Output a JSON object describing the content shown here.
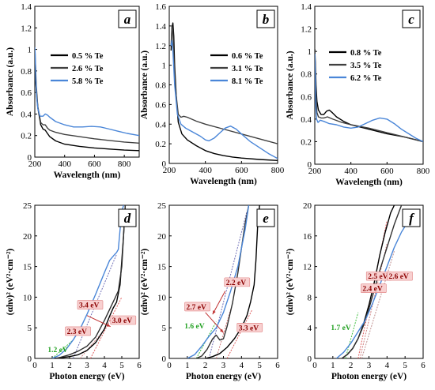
{
  "chart_data": [
    {
      "id": "a",
      "type": "line",
      "panel_label": "a",
      "xlabel": "Wavelength (nm)",
      "ylabel": "Absorbance (a.u.)",
      "xlim": [
        200,
        900
      ],
      "ylim": [
        0,
        1.4
      ],
      "xticks": [
        200,
        400,
        600,
        800
      ],
      "yticks": [
        0,
        0.2,
        0.4,
        0.6,
        0.8,
        1.0,
        1.2,
        1.4
      ],
      "ytick_labels": [
        "0",
        "0.2",
        "0.4",
        "0.6",
        "0.8",
        "1",
        "1.2",
        "1.4"
      ],
      "legend_position": "top-left",
      "series": [
        {
          "name": "0.5 % Te",
          "color": "#000000",
          "x": [
            200,
            205,
            210,
            220,
            240,
            255,
            270,
            285,
            300,
            340,
            400,
            500,
            600,
            700,
            800,
            900
          ],
          "y": [
            0.78,
            0.72,
            0.62,
            0.46,
            0.3,
            0.26,
            0.25,
            0.22,
            0.19,
            0.15,
            0.12,
            0.1,
            0.085,
            0.075,
            0.065,
            0.06
          ]
        },
        {
          "name": "2.6 % Te",
          "color": "#404040",
          "x": [
            200,
            205,
            210,
            220,
            240,
            255,
            270,
            285,
            300,
            340,
            400,
            500,
            600,
            700,
            800,
            900
          ],
          "y": [
            0.98,
            0.85,
            0.66,
            0.47,
            0.32,
            0.3,
            0.3,
            0.27,
            0.25,
            0.23,
            0.21,
            0.19,
            0.17,
            0.155,
            0.14,
            0.13
          ]
        },
        {
          "name": "5.8 % Te",
          "color": "#4a86d8",
          "x": [
            200,
            203,
            207,
            212,
            220,
            235,
            255,
            270,
            285,
            300,
            340,
            400,
            460,
            520,
            580,
            640,
            700,
            760,
            820,
            900
          ],
          "y": [
            1.02,
            0.95,
            0.72,
            0.56,
            0.45,
            0.38,
            0.38,
            0.4,
            0.39,
            0.37,
            0.33,
            0.3,
            0.28,
            0.28,
            0.285,
            0.28,
            0.26,
            0.24,
            0.22,
            0.2
          ]
        }
      ]
    },
    {
      "id": "b",
      "type": "line",
      "panel_label": "b",
      "xlabel": "Wavelength (nm)",
      "ylabel": "Absorbance (a.u.)",
      "xlim": [
        200,
        800
      ],
      "ylim": [
        0,
        1.6
      ],
      "xticks": [
        200,
        400,
        600,
        800
      ],
      "yticks": [
        0,
        0.2,
        0.4,
        0.6,
        0.8,
        1.0,
        1.2,
        1.4,
        1.6
      ],
      "ytick_labels": [
        "0",
        "0.2",
        "0.4",
        "0.6",
        "0.8",
        "1",
        "1.2",
        "1.4",
        "1.6"
      ],
      "legend_position": "top-right",
      "series": [
        {
          "name": "0.6 % Te",
          "color": "#000000",
          "x": [
            210,
            215,
            220,
            225,
            230,
            240,
            250,
            270,
            300,
            350,
            400,
            450,
            500,
            550,
            600,
            700,
            800
          ],
          "y": [
            1.15,
            1.38,
            1.43,
            1.3,
            1.0,
            0.65,
            0.42,
            0.3,
            0.24,
            0.18,
            0.13,
            0.1,
            0.08,
            0.065,
            0.055,
            0.04,
            0.03
          ]
        },
        {
          "name": "3.1 % Te",
          "color": "#404040",
          "x": [
            210,
            215,
            220,
            225,
            235,
            250,
            265,
            280,
            300,
            350,
            400,
            500,
            600,
            700,
            800
          ],
          "y": [
            1.2,
            1.4,
            1.35,
            1.1,
            0.75,
            0.5,
            0.47,
            0.48,
            0.47,
            0.43,
            0.4,
            0.35,
            0.3,
            0.25,
            0.2
          ]
        },
        {
          "name": "8.1 % Te",
          "color": "#4a86d8",
          "x": [
            210,
            215,
            220,
            230,
            245,
            265,
            290,
            330,
            370,
            400,
            420,
            450,
            480,
            510,
            540,
            570,
            600,
            650,
            700,
            750,
            800
          ],
          "y": [
            1.2,
            1.25,
            1.15,
            0.8,
            0.5,
            0.4,
            0.36,
            0.32,
            0.28,
            0.24,
            0.23,
            0.26,
            0.31,
            0.36,
            0.38,
            0.35,
            0.3,
            0.22,
            0.16,
            0.1,
            0.05
          ]
        }
      ]
    },
    {
      "id": "c",
      "type": "line",
      "panel_label": "c",
      "xlabel": "Wavelength (nm)",
      "ylabel": "Absorbance (a.u.)",
      "xlim": [
        200,
        800
      ],
      "ylim": [
        0,
        1.4
      ],
      "xticks": [
        200,
        400,
        600,
        800
      ],
      "yticks": [
        0,
        0.2,
        0.4,
        0.6,
        0.8,
        1.0,
        1.2,
        1.4
      ],
      "ytick_labels": [
        "0",
        "0.2",
        "0.4",
        "0.6",
        "0.8",
        "1",
        "1.2",
        "1.4"
      ],
      "legend_position": "top-right",
      "series": [
        {
          "name": "0.8 % Te",
          "color": "#000000",
          "x": [
            200,
            203,
            207,
            212,
            220,
            235,
            250,
            265,
            280,
            295,
            320,
            360,
            400,
            500,
            600,
            700,
            800
          ],
          "y": [
            1.02,
            0.9,
            0.7,
            0.56,
            0.48,
            0.44,
            0.44,
            0.47,
            0.48,
            0.46,
            0.42,
            0.38,
            0.35,
            0.31,
            0.27,
            0.24,
            0.2
          ]
        },
        {
          "name": "3.5 % Te",
          "color": "#404040",
          "x": [
            200,
            203,
            207,
            212,
            220,
            235,
            250,
            270,
            300,
            350,
            400,
            500,
            600,
            700,
            800
          ],
          "y": [
            1.0,
            0.85,
            0.6,
            0.46,
            0.42,
            0.41,
            0.41,
            0.42,
            0.4,
            0.37,
            0.35,
            0.32,
            0.28,
            0.24,
            0.2
          ]
        },
        {
          "name": "6.2 % Te",
          "color": "#4a86d8",
          "x": [
            200,
            203,
            206,
            210,
            218,
            230,
            250,
            280,
            320,
            360,
            400,
            440,
            480,
            520,
            560,
            600,
            640,
            680,
            720,
            760,
            800
          ],
          "y": [
            0.98,
            0.75,
            0.5,
            0.4,
            0.37,
            0.39,
            0.38,
            0.36,
            0.35,
            0.33,
            0.32,
            0.33,
            0.36,
            0.39,
            0.41,
            0.4,
            0.36,
            0.31,
            0.27,
            0.23,
            0.2
          ]
        }
      ]
    },
    {
      "id": "d",
      "type": "line",
      "panel_label": "d",
      "xlabel": "Photon energy (eV)",
      "ylabel": "(αhν)² (eV²·cm⁻²)",
      "xlim": [
        0,
        6
      ],
      "ylim": [
        0,
        25
      ],
      "xticks": [
        0,
        1,
        2,
        3,
        4,
        5,
        6
      ],
      "yticks": [
        0,
        5,
        10,
        15,
        20,
        25
      ],
      "series": [
        {
          "name": "black",
          "color": "#000000",
          "x": [
            1.0,
            1.5,
            2.0,
            2.5,
            3.0,
            3.5,
            4.0,
            4.3,
            4.5,
            4.7,
            4.9,
            5.1,
            5.2
          ],
          "y": [
            0,
            0.1,
            0.3,
            0.6,
            1.3,
            2.6,
            4.8,
            6.9,
            8.2,
            9.2,
            12,
            20,
            25
          ]
        },
        {
          "name": "dark",
          "color": "#303030",
          "x": [
            1.2,
            1.5,
            2.0,
            2.5,
            3.0,
            3.5,
            4.0,
            4.3,
            4.6,
            4.8,
            5.0,
            5.2
          ],
          "y": [
            0,
            0.2,
            0.6,
            1.2,
            2.0,
            3.5,
            6.2,
            8.0,
            9.8,
            11,
            15,
            25
          ]
        },
        {
          "name": "blue",
          "color": "#4a86d8",
          "x": [
            1.0,
            1.4,
            1.8,
            2.2,
            2.6,
            3.0,
            3.5,
            4.0,
            4.3,
            4.6,
            4.7,
            4.8,
            4.9,
            5.0,
            5.1
          ],
          "y": [
            0,
            0.5,
            1.5,
            3.0,
            4.8,
            7.2,
            10.5,
            14,
            16,
            17,
            17.3,
            17.8,
            21,
            24,
            25
          ]
        }
      ],
      "fit_lines": [
        {
          "color": "#7070b8",
          "x": [
            2.2,
            4.7
          ],
          "y": [
            0,
            17
          ]
        },
        {
          "color": "#e06060",
          "x": [
            3.2,
            5.0
          ],
          "y": [
            0,
            10
          ]
        },
        {
          "color": "#d08080",
          "x": [
            2.6,
            3.8
          ],
          "y": [
            0,
            4
          ]
        },
        {
          "color": "#40c040",
          "x": [
            1.0,
            2.2
          ],
          "y": [
            0,
            3
          ]
        }
      ],
      "annotations": [
        {
          "text": "3.4 eV",
          "x": 2.5,
          "y": 8.3,
          "color": "#8b0000",
          "bg": "#f8d0d0",
          "border": "#e08080"
        },
        {
          "text": "3.0 eV",
          "x": 4.4,
          "y": 5.8,
          "color": "#8b0000",
          "bg": "#f8d0d0",
          "border": "#e08080"
        },
        {
          "text": "2.3 eV",
          "x": 1.8,
          "y": 4.0,
          "color": "#8b0000",
          "bg": "#f8d0d0",
          "border": "#e08080"
        },
        {
          "text": "1.2 eV",
          "x": 0.7,
          "y": 1.0,
          "color": "#20a020",
          "bg": "none",
          "border": "none"
        }
      ],
      "arrows": [
        {
          "from": [
            3.0,
            7.0
          ],
          "to": [
            4.35,
            5.2
          ]
        }
      ]
    },
    {
      "id": "e",
      "type": "line",
      "panel_label": "e",
      "xlabel": "Photon energy (eV)",
      "ylabel": "(αhν)² (eV²·cm⁻²)",
      "xlim": [
        0,
        6
      ],
      "ylim": [
        0,
        25
      ],
      "xticks": [
        0,
        1,
        2,
        3,
        4,
        5,
        6
      ],
      "yticks": [
        0,
        5,
        10,
        15,
        20,
        25
      ],
      "series": [
        {
          "name": "black",
          "color": "#000000",
          "x": [
            2.0,
            2.4,
            2.8,
            3.2,
            3.6,
            4.0,
            4.3,
            4.5,
            4.7,
            4.8,
            4.9,
            5.0
          ],
          "y": [
            0,
            0.3,
            0.8,
            1.8,
            3.2,
            5.0,
            7.0,
            9.2,
            12,
            16,
            22,
            25
          ]
        },
        {
          "name": "dark",
          "color": "#303030",
          "x": [
            1.5,
            1.8,
            2.1,
            2.4,
            2.6,
            2.8,
            3.0,
            3.2,
            3.5,
            3.8,
            4.0,
            4.2,
            4.4
          ],
          "y": [
            0,
            0.4,
            1.5,
            3.2,
            3.8,
            3.0,
            3.2,
            5.2,
            9,
            14,
            18,
            22,
            25
          ]
        },
        {
          "name": "blue",
          "color": "#4a86d8",
          "x": [
            1.0,
            1.4,
            1.8,
            2.2,
            2.6,
            3.0,
            3.4,
            3.8,
            4.0,
            4.2,
            4.3,
            4.4
          ],
          "y": [
            0,
            0.6,
            2.0,
            3.6,
            5.0,
            7.5,
            11,
            15,
            18,
            21,
            23,
            25
          ]
        }
      ],
      "fit_lines": [
        {
          "color": "#7070b8",
          "x": [
            2.2,
            4.3
          ],
          "y": [
            0,
            24
          ]
        },
        {
          "color": "#e06060",
          "x": [
            3.2,
            4.6
          ],
          "y": [
            0,
            8
          ]
        },
        {
          "color": "#d08080",
          "x": [
            2.6,
            3.4
          ],
          "y": [
            0,
            8
          ]
        },
        {
          "color": "#40c040",
          "x": [
            1.5,
            2.6
          ],
          "y": [
            0,
            6
          ]
        }
      ],
      "annotations": [
        {
          "text": "2.2 eV",
          "x": 3.1,
          "y": 12.0,
          "color": "#8b0000",
          "bg": "#f8d0d0",
          "border": "#e08080"
        },
        {
          "text": "2.7 eV",
          "x": 0.9,
          "y": 8.0,
          "color": "#8b0000",
          "bg": "#f8d0d0",
          "border": "#e08080"
        },
        {
          "text": "3.3 eV",
          "x": 3.8,
          "y": 4.6,
          "color": "#8b0000",
          "bg": "#f8d0d0",
          "border": "#e08080"
        },
        {
          "text": "1.6 eV",
          "x": 0.8,
          "y": 4.9,
          "color": "#20a020",
          "bg": "none",
          "border": "none"
        }
      ],
      "arrows": [
        {
          "from": [
            3.1,
            11.0
          ],
          "to": [
            2.4,
            7.2
          ]
        },
        {
          "from": [
            2.0,
            7.5
          ],
          "to": [
            3.0,
            4.2
          ]
        }
      ]
    },
    {
      "id": "f",
      "type": "line",
      "panel_label": "f",
      "xlabel": "Photon energy (eV)",
      "ylabel": "(αhν)² (eV²·cm⁻²)",
      "xlim": [
        0,
        6
      ],
      "ylim": [
        0,
        20
      ],
      "xticks": [
        0,
        1,
        2,
        3,
        4,
        5,
        6
      ],
      "yticks": [
        0,
        4,
        8,
        12,
        16,
        20
      ],
      "series": [
        {
          "name": "black",
          "color": "#000000",
          "x": [
            1.5,
            1.8,
            2.1,
            2.4,
            2.7,
            3.0,
            3.3,
            3.6,
            3.9,
            4.2,
            4.4
          ],
          "y": [
            0,
            0.5,
            1.3,
            2.6,
            4.5,
            7,
            10,
            13.5,
            16.5,
            19,
            20
          ]
        },
        {
          "name": "dark",
          "color": "#303030",
          "x": [
            1.5,
            1.8,
            2.1,
            2.4,
            2.7,
            3.0,
            3.3,
            3.6,
            4.0,
            4.4,
            4.8
          ],
          "y": [
            0,
            0.5,
            1.3,
            2.6,
            4.3,
            6.5,
            9,
            11.5,
            14.5,
            17.5,
            20
          ]
        },
        {
          "name": "blue",
          "color": "#4a86d8",
          "x": [
            1.2,
            1.6,
            2.0,
            2.4,
            2.8,
            3.2,
            3.6,
            4.0,
            4.4,
            4.8,
            5.2
          ],
          "y": [
            0,
            0.8,
            2.0,
            3.5,
            5.0,
            7.2,
            9.6,
            12,
            14.5,
            16.5,
            18
          ]
        }
      ],
      "fit_lines": [
        {
          "color": "#e06060",
          "x": [
            2.4,
            4.0
          ],
          "y": [
            0,
            18
          ]
        },
        {
          "color": "#d08080",
          "x": [
            2.5,
            4.0
          ],
          "y": [
            0,
            15
          ]
        },
        {
          "color": "#c09090",
          "x": [
            2.6,
            4.4
          ],
          "y": [
            0,
            14
          ]
        },
        {
          "color": "#40c040",
          "x": [
            1.7,
            2.4
          ],
          "y": [
            0,
            6
          ]
        }
      ],
      "annotations": [
        {
          "text": "2.5 eV",
          "x": 2.9,
          "y": 10.4,
          "color": "#8b0000",
          "bg": "#f8d0d0",
          "border": "#e08080"
        },
        {
          "text": "2.6 eV",
          "x": 4.05,
          "y": 10.4,
          "color": "#8b0000",
          "bg": "#f8d0d0",
          "border": "#e08080"
        },
        {
          "text": "2.4 eV",
          "x": 2.6,
          "y": 8.8,
          "color": "#8b0000",
          "bg": "#f8d0d0",
          "border": "#e08080"
        },
        {
          "text": "1.7 eV",
          "x": 0.85,
          "y": 3.7,
          "color": "#20a020",
          "bg": "none",
          "border": "none"
        }
      ],
      "arrows": []
    }
  ]
}
